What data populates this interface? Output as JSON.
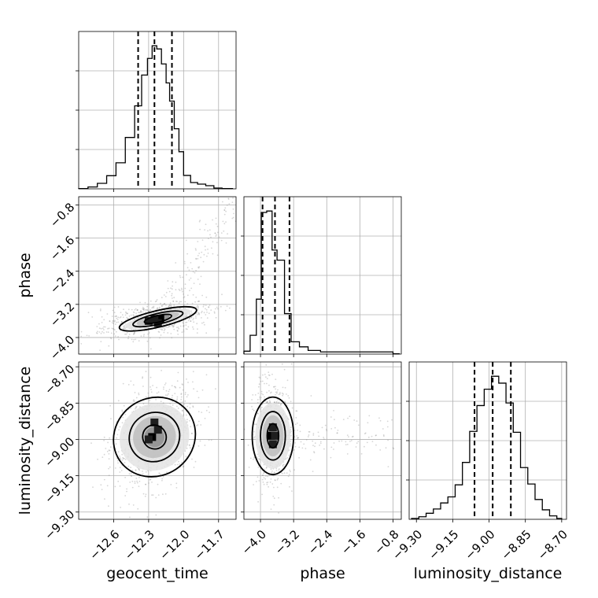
{
  "chart_data": {
    "type": "corner",
    "parameters": [
      "geocent_time",
      "phase",
      "luminosity_distance"
    ],
    "axis_labels": {
      "geocent_time": "geocent_time",
      "phase": "phase",
      "luminosity_distance": "luminosity_distance"
    },
    "ticks": {
      "geocent_time": {
        "values": [
          -12.6,
          -12.3,
          -12.0,
          -11.7
        ],
        "labels": [
          "−12.6",
          "−12.3",
          "−12.0",
          "−11.7"
        ]
      },
      "phase": {
        "values": [
          -4.0,
          -3.2,
          -2.4,
          -1.6,
          -0.8
        ],
        "labels": [
          "−4.0",
          "−3.2",
          "−2.4",
          "−1.6",
          "−0.8"
        ]
      },
      "luminosity_distance": {
        "values": [
          -9.3,
          -9.15,
          -9.0,
          -8.85,
          -8.7
        ],
        "labels": [
          "−9.30",
          "−9.15",
          "−9.00",
          "−8.85",
          "−8.70"
        ]
      }
    },
    "ranges": {
      "geocent_time": [
        -12.9,
        -11.55
      ],
      "phase": [
        -4.4,
        -0.6
      ],
      "luminosity_distance": [
        -9.33,
        -8.68
      ]
    },
    "grid": true,
    "histograms": {
      "geocent_time": {
        "edges": [
          -12.9,
          -12.82,
          -12.74,
          -12.66,
          -12.58,
          -12.5,
          -12.42,
          -12.36,
          -12.31,
          -12.27,
          -12.23,
          -12.19,
          -12.15,
          -12.12,
          -12.08,
          -12.04,
          -12.0,
          -11.94,
          -11.88,
          -11.81,
          -11.74,
          -11.67,
          -11.58
        ],
        "counts": [
          0.2,
          1.2,
          3.5,
          8.3,
          16.5,
          32.5,
          52.5,
          72,
          82.5,
          90.5,
          88.5,
          79,
          67,
          55.5,
          38,
          23.5,
          8.5,
          4,
          3,
          2,
          0.5,
          0.2
        ],
        "quantiles": [
          -12.39,
          -12.25,
          -12.1
        ]
      },
      "phase": {
        "edges": [
          -4.4,
          -4.25,
          -4.1,
          -3.98,
          -3.85,
          -3.72,
          -3.6,
          -3.42,
          -3.26,
          -3.06,
          -2.85,
          -2.55,
          -2.2,
          -1.85,
          -1.45,
          -1.15,
          -0.8,
          -0.65
        ],
        "counts": [
          2,
          13,
          38,
          98,
          99,
          72,
          65,
          28,
          8.5,
          5,
          2.5,
          1.5,
          1.5,
          1.5,
          1.5,
          1.5,
          0.2
        ],
        "quantiles": [
          -3.95,
          -3.65,
          -3.3
        ]
      },
      "luminosity_distance": {
        "edges": [
          -9.32,
          -9.29,
          -9.26,
          -9.23,
          -9.2,
          -9.17,
          -9.14,
          -9.11,
          -9.08,
          -9.05,
          -9.02,
          -8.99,
          -8.96,
          -8.93,
          -8.9,
          -8.87,
          -8.84,
          -8.81,
          -8.78,
          -8.75,
          -8.72,
          -8.7
        ],
        "counts": [
          0.5,
          1.5,
          3.5,
          6,
          9.5,
          13,
          20,
          33,
          51,
          66,
          75.5,
          83,
          79,
          67.5,
          50.5,
          30,
          20.5,
          11.5,
          5.5,
          2,
          0.5
        ],
        "quantiles": [
          -9.06,
          -8.985,
          -8.91
        ]
      }
    },
    "joint": [
      {
        "x": "geocent_time",
        "y": "phase",
        "center": [
          -12.22,
          -3.55
        ],
        "spread": [
          0.17,
          0.16
        ],
        "tilt": 0.35,
        "tail": "up-right",
        "contours": [
          {
            "rx": 0.34,
            "ry": 0.2
          },
          {
            "rx": 0.22,
            "ry": 0.13
          },
          {
            "rx": 0.12,
            "ry": 0.08
          }
        ],
        "hot_cells": [
          [
            -12.2,
            -3.55
          ],
          [
            -12.25,
            -3.55
          ],
          [
            -12.22,
            -3.65
          ],
          [
            -12.3,
            -3.6
          ]
        ]
      },
      {
        "x": "geocent_time",
        "y": "luminosity_distance",
        "center": [
          -12.25,
          -8.99
        ],
        "spread": [
          0.15,
          0.08
        ],
        "tilt": 0.9,
        "tail": "none",
        "contours": [
          {
            "rx": 0.36,
            "ry": 0.16
          },
          {
            "rx": 0.22,
            "ry": 0.1
          },
          {
            "rx": 0.1,
            "ry": 0.05
          }
        ],
        "hot_cells": [
          [
            -12.27,
            -8.99
          ],
          [
            -12.3,
            -9.0
          ],
          [
            -12.22,
            -8.96
          ],
          [
            -12.25,
            -8.93
          ]
        ]
      },
      {
        "x": "phase",
        "y": "luminosity_distance",
        "center": [
          -3.7,
          -8.985
        ],
        "spread": [
          0.16,
          0.085
        ],
        "tilt": 0.0,
        "tail": "right",
        "contours": [
          {
            "rx": 0.5,
            "ry": 0.16
          },
          {
            "rx": 0.3,
            "ry": 0.1
          },
          {
            "rx": 0.14,
            "ry": 0.05
          }
        ],
        "hot_cells": [
          [
            -3.75,
            -8.985
          ],
          [
            -3.65,
            -8.985
          ],
          [
            -3.7,
            -9.02
          ],
          [
            -3.7,
            -8.95
          ]
        ]
      }
    ]
  }
}
